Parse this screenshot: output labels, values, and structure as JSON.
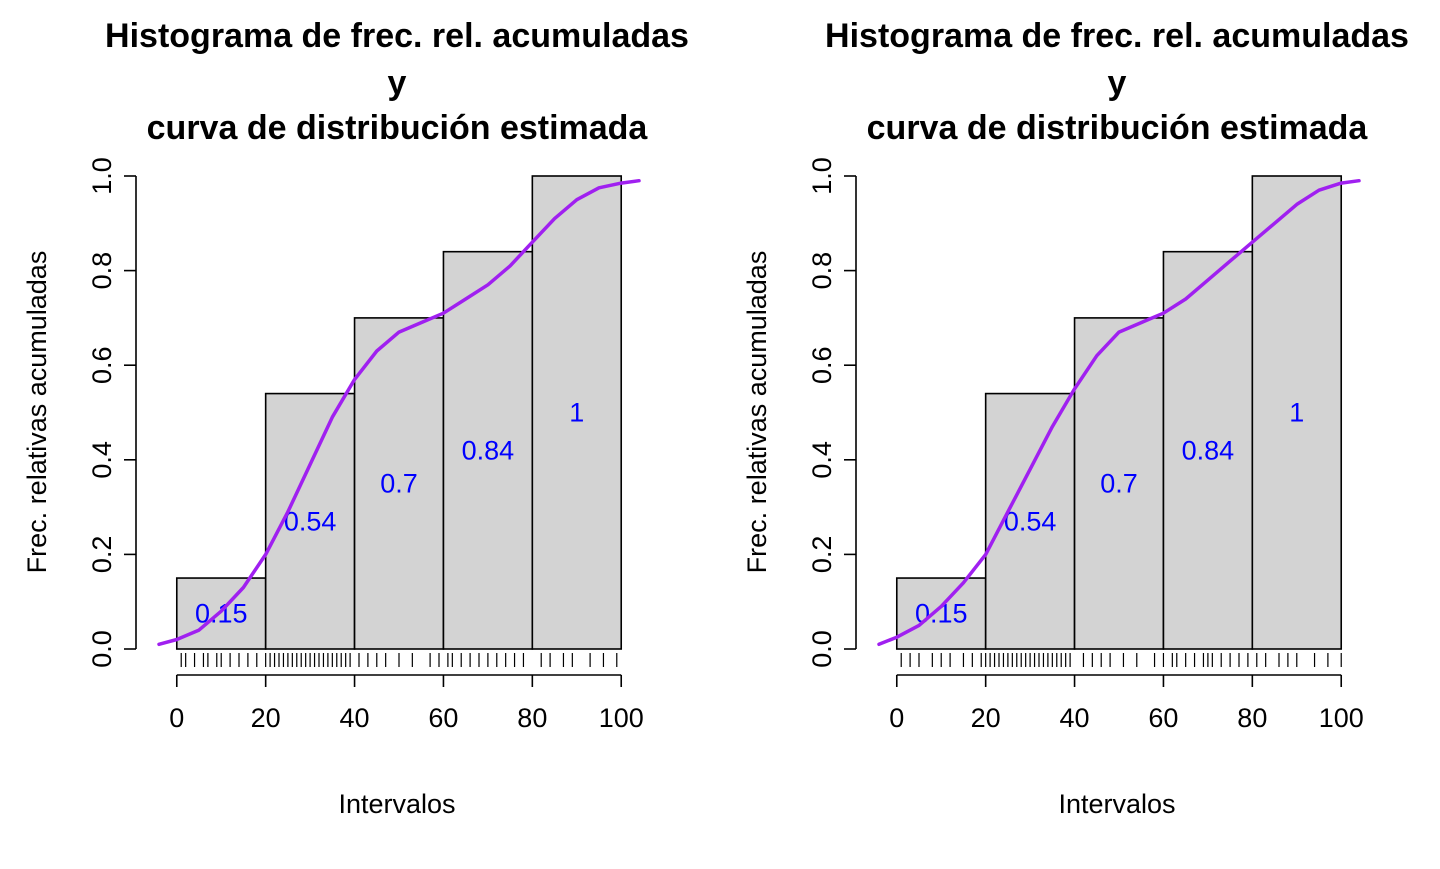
{
  "chart_data": [
    {
      "type": "bar",
      "title_lines": [
        "Histograma de frec. rel. acumuladas",
        "y",
        "curva de distribución estimada"
      ],
      "xlabel": "Intervalos",
      "ylabel": "Frec. relativas acumuladas",
      "bins": [
        [
          0,
          20
        ],
        [
          20,
          40
        ],
        [
          40,
          60
        ],
        [
          60,
          80
        ],
        [
          80,
          100
        ]
      ],
      "values": [
        0.15,
        0.54,
        0.7,
        0.84,
        1
      ],
      "value_labels": [
        "0.15",
        "0.54",
        "0.7",
        "0.84",
        "1"
      ],
      "xlim": [
        -4,
        104
      ],
      "ylim": [
        0,
        1
      ],
      "xticks": [
        0,
        20,
        40,
        60,
        80,
        100
      ],
      "xtick_labels": [
        "0",
        "20",
        "40",
        "60",
        "80",
        "100"
      ],
      "yticks": [
        0,
        0.2,
        0.4,
        0.6,
        0.8,
        1
      ],
      "ytick_labels": [
        "0.0",
        "0.2",
        "0.4",
        "0.6",
        "0.8",
        "1.0"
      ],
      "curve": {
        "x": [
          -4,
          0,
          5,
          10,
          15,
          20,
          25,
          30,
          35,
          40,
          45,
          50,
          55,
          60,
          65,
          70,
          75,
          80,
          85,
          90,
          95,
          100,
          104
        ],
        "y": [
          0.01,
          0.02,
          0.04,
          0.08,
          0.13,
          0.2,
          0.29,
          0.39,
          0.49,
          0.57,
          0.63,
          0.67,
          0.69,
          0.71,
          0.74,
          0.77,
          0.81,
          0.86,
          0.91,
          0.95,
          0.975,
          0.985,
          0.99
        ]
      },
      "rug": [
        1,
        2,
        4,
        6,
        7,
        9,
        10,
        12,
        14,
        16,
        18,
        20,
        21,
        22,
        23,
        24,
        25,
        26,
        27,
        28,
        29,
        30,
        31,
        32,
        33,
        34,
        35,
        36,
        37,
        38,
        39,
        41,
        43,
        45,
        47,
        50,
        53,
        57,
        59,
        61,
        62,
        64,
        66,
        68,
        70,
        72,
        74,
        76,
        78,
        82,
        84,
        87,
        89,
        93,
        96,
        99
      ],
      "colors": {
        "bar_fill": "#d3d3d3",
        "bar_stroke": "#000000",
        "curve": "#a020f0",
        "labels": "#0000ff"
      }
    },
    {
      "type": "bar",
      "title_lines": [
        "Histograma de frec. rel. acumuladas",
        "y",
        "curva de distribución estimada"
      ],
      "xlabel": "Intervalos",
      "ylabel": "Frec. relativas acumuladas",
      "bins": [
        [
          0,
          20
        ],
        [
          20,
          40
        ],
        [
          40,
          60
        ],
        [
          60,
          80
        ],
        [
          80,
          100
        ]
      ],
      "values": [
        0.15,
        0.54,
        0.7,
        0.84,
        1
      ],
      "value_labels": [
        "0.15",
        "0.54",
        "0.7",
        "0.84",
        "1"
      ],
      "xlim": [
        -4,
        104
      ],
      "ylim": [
        0,
        1
      ],
      "xticks": [
        0,
        20,
        40,
        60,
        80,
        100
      ],
      "xtick_labels": [
        "0",
        "20",
        "40",
        "60",
        "80",
        "100"
      ],
      "yticks": [
        0,
        0.2,
        0.4,
        0.6,
        0.8,
        1
      ],
      "ytick_labels": [
        "0.0",
        "0.2",
        "0.4",
        "0.6",
        "0.8",
        "1.0"
      ],
      "curve": {
        "x": [
          -4,
          0,
          5,
          10,
          15,
          20,
          25,
          30,
          35,
          40,
          45,
          50,
          55,
          60,
          65,
          70,
          75,
          80,
          85,
          90,
          95,
          100,
          104
        ],
        "y": [
          0.01,
          0.025,
          0.05,
          0.09,
          0.14,
          0.2,
          0.29,
          0.38,
          0.47,
          0.55,
          0.62,
          0.67,
          0.69,
          0.71,
          0.74,
          0.78,
          0.82,
          0.86,
          0.9,
          0.94,
          0.97,
          0.985,
          0.99
        ]
      },
      "rug": [
        1,
        3,
        5,
        8,
        10,
        12,
        15,
        17,
        19,
        20,
        21,
        22,
        23,
        24,
        25,
        26,
        27,
        28,
        29,
        30,
        31,
        32,
        33,
        34,
        35,
        36,
        37,
        38,
        39,
        42,
        44,
        46,
        48,
        51,
        54,
        58,
        60,
        62,
        63,
        65,
        67,
        69,
        70,
        71,
        73,
        75,
        77,
        79,
        81,
        83,
        86,
        88,
        90,
        94,
        97,
        100
      ],
      "colors": {
        "bar_fill": "#d3d3d3",
        "bar_stroke": "#000000",
        "curve": "#a020f0",
        "labels": "#0000ff"
      }
    }
  ]
}
